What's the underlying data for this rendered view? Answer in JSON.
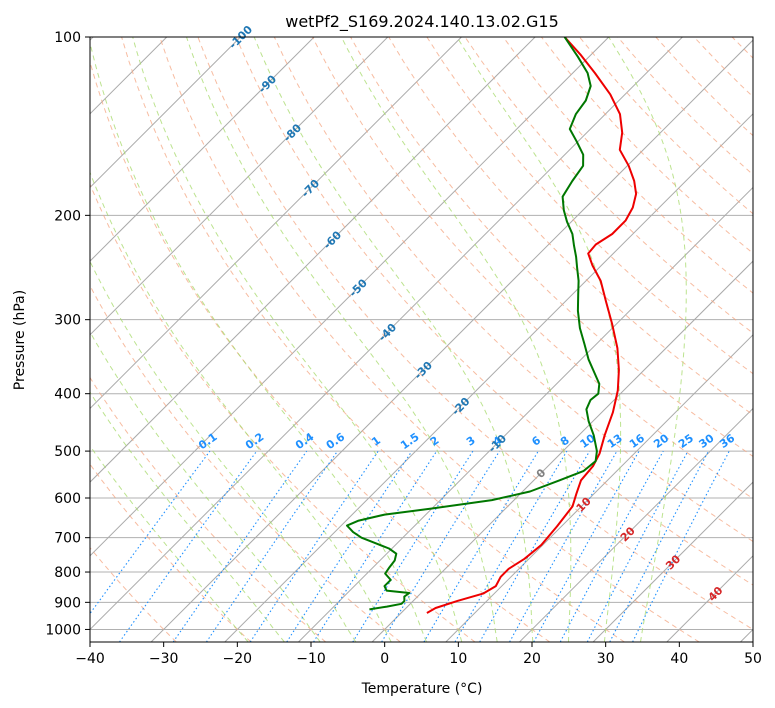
{
  "chart_data": {
    "type": "line",
    "subtype": "skew-t log-p",
    "title": "wetPf2_S169.2024.140.13.02.G15",
    "xlabel": "Temperature (°C)",
    "ylabel": "Pressure (hPa)",
    "xlim": [
      -40,
      50
    ],
    "ylim": [
      1050,
      100
    ],
    "y_scale": "log",
    "x_ticks": [
      "−40",
      "−30",
      "−20",
      "−10",
      "0",
      "10",
      "20",
      "30",
      "40",
      "50"
    ],
    "y_ticks": [
      "100",
      "200",
      "300",
      "400",
      "500",
      "600",
      "700",
      "800",
      "900",
      "1000"
    ],
    "grid": true,
    "series": [
      {
        "role": "temperature",
        "color": "#ee0000",
        "points": [
          {
            "p": 938,
            "t": 3.5
          },
          {
            "p": 920,
            "t": 4.0
          },
          {
            "p": 895,
            "t": 6.0
          },
          {
            "p": 870,
            "t": 8.5
          },
          {
            "p": 845,
            "t": 9.2
          },
          {
            "p": 815,
            "t": 8.6
          },
          {
            "p": 790,
            "t": 8.6
          },
          {
            "p": 760,
            "t": 9.4
          },
          {
            "p": 720,
            "t": 9.8
          },
          {
            "p": 670,
            "t": 9.4
          },
          {
            "p": 620,
            "t": 8.8
          },
          {
            "p": 590,
            "t": 7.6
          },
          {
            "p": 560,
            "t": 6.4
          },
          {
            "p": 530,
            "t": 6.1
          },
          {
            "p": 505,
            "t": 5.3
          },
          {
            "p": 470,
            "t": 3.5
          },
          {
            "p": 430,
            "t": 1.5
          },
          {
            "p": 395,
            "t": -0.8
          },
          {
            "p": 365,
            "t": -3.4
          },
          {
            "p": 335,
            "t": -6.6
          },
          {
            "p": 305,
            "t": -10.6
          },
          {
            "p": 280,
            "t": -14.4
          },
          {
            "p": 258,
            "t": -18.0
          },
          {
            "p": 243,
            "t": -21.2
          },
          {
            "p": 232,
            "t": -23.4
          },
          {
            "p": 224,
            "t": -23.6
          },
          {
            "p": 215,
            "t": -22.8
          },
          {
            "p": 204,
            "t": -22.8
          },
          {
            "p": 194,
            "t": -23.6
          },
          {
            "p": 184,
            "t": -25.0
          },
          {
            "p": 175,
            "t": -27.0
          },
          {
            "p": 165,
            "t": -29.8
          },
          {
            "p": 155,
            "t": -33.2
          },
          {
            "p": 145,
            "t": -35.2
          },
          {
            "p": 135,
            "t": -38.0
          },
          {
            "p": 125,
            "t": -42.0
          },
          {
            "p": 115,
            "t": -47.0
          },
          {
            "p": 107,
            "t": -51.5
          },
          {
            "p": 100,
            "t": -56.0
          }
        ]
      },
      {
        "role": "dewpoint",
        "color": "#007700",
        "points": [
          {
            "p": 925,
            "t": -4.8
          },
          {
            "p": 915,
            "t": -2.8
          },
          {
            "p": 905,
            "t": -1.2
          },
          {
            "p": 895,
            "t": -1.2
          },
          {
            "p": 880,
            "t": -1.8
          },
          {
            "p": 868,
            "t": -1.6
          },
          {
            "p": 860,
            "t": -5.0
          },
          {
            "p": 845,
            "t": -5.9
          },
          {
            "p": 825,
            "t": -5.9
          },
          {
            "p": 805,
            "t": -7.5
          },
          {
            "p": 785,
            "t": -7.8
          },
          {
            "p": 765,
            "t": -8.0
          },
          {
            "p": 745,
            "t": -8.7
          },
          {
            "p": 730,
            "t": -10.4
          },
          {
            "p": 715,
            "t": -13.0
          },
          {
            "p": 700,
            "t": -15.6
          },
          {
            "p": 685,
            "t": -17.5
          },
          {
            "p": 668,
            "t": -19.2
          },
          {
            "p": 655,
            "t": -18.3
          },
          {
            "p": 640,
            "t": -15.6
          },
          {
            "p": 625,
            "t": -10.0
          },
          {
            "p": 605,
            "t": -3.0
          },
          {
            "p": 585,
            "t": 1.0
          },
          {
            "p": 560,
            "t": 3.5
          },
          {
            "p": 540,
            "t": 5.5
          },
          {
            "p": 520,
            "t": 5.8
          },
          {
            "p": 500,
            "t": 4.6
          },
          {
            "p": 470,
            "t": 2.0
          },
          {
            "p": 445,
            "t": -0.6
          },
          {
            "p": 425,
            "t": -2.5
          },
          {
            "p": 410,
            "t": -3.2
          },
          {
            "p": 400,
            "t": -3.0
          },
          {
            "p": 385,
            "t": -4.2
          },
          {
            "p": 370,
            "t": -6.2
          },
          {
            "p": 350,
            "t": -9.0
          },
          {
            "p": 330,
            "t": -11.6
          },
          {
            "p": 310,
            "t": -14.4
          },
          {
            "p": 290,
            "t": -17.0
          },
          {
            "p": 272,
            "t": -19.2
          },
          {
            "p": 258,
            "t": -21.0
          },
          {
            "p": 245,
            "t": -23.0
          },
          {
            "p": 235,
            "t": -24.6
          },
          {
            "p": 225,
            "t": -26.4
          },
          {
            "p": 215,
            "t": -28.2
          },
          {
            "p": 205,
            "t": -30.6
          },
          {
            "p": 196,
            "t": -32.6
          },
          {
            "p": 186,
            "t": -34.6
          },
          {
            "p": 175,
            "t": -35.4
          },
          {
            "p": 165,
            "t": -36.0
          },
          {
            "p": 158,
            "t": -37.5
          },
          {
            "p": 150,
            "t": -40.2
          },
          {
            "p": 143,
            "t": -42.8
          },
          {
            "p": 135,
            "t": -44.0
          },
          {
            "p": 128,
            "t": -44.5
          },
          {
            "p": 121,
            "t": -45.8
          },
          {
            "p": 115,
            "t": -48.0
          },
          {
            "p": 108,
            "t": -51.5
          },
          {
            "p": 100,
            "t": -56.0
          }
        ]
      }
    ],
    "reference_lines": {
      "isotherms": {
        "step": 10,
        "color": "#aaaaaa"
      },
      "dry_adiabats": {
        "theta_c": [
          -30,
          -20,
          -10,
          0,
          10,
          20,
          30,
          40,
          50,
          60,
          70,
          80,
          90,
          100,
          110,
          120,
          130,
          140,
          150,
          160,
          170,
          180,
          190,
          200
        ],
        "color": "#f4a582"
      },
      "moist_adiabats": {
        "theta_w_c": [
          -20,
          -15,
          -10,
          -5,
          0,
          5,
          10,
          15,
          20,
          25,
          30,
          35
        ],
        "color": "#a6d96a"
      },
      "mixing_ratio_lines": {
        "values": [
          0.1,
          0.2,
          0.4,
          0.6,
          1,
          1.5,
          2,
          3,
          4,
          6,
          8,
          10,
          13,
          16,
          20,
          25,
          30,
          36
        ],
        "color": "#1e90ff"
      }
    },
    "isotherm_labels": [
      {
        "text": "-100",
        "color": "#1f77b4"
      },
      {
        "text": "-90",
        "color": "#1f77b4"
      },
      {
        "text": "-80",
        "color": "#1f77b4"
      },
      {
        "text": "-70",
        "color": "#1f77b4"
      },
      {
        "text": "-60",
        "color": "#1f77b4"
      },
      {
        "text": "-50",
        "color": "#1f77b4"
      },
      {
        "text": "-40",
        "color": "#1f77b4"
      },
      {
        "text": "-30",
        "color": "#1f77b4"
      },
      {
        "text": "-20",
        "color": "#1f77b4"
      },
      {
        "text": "-10",
        "color": "#1f77b4"
      },
      {
        "text": "0",
        "color": "#808080"
      },
      {
        "text": "10",
        "color": "#d62728"
      },
      {
        "text": "20",
        "color": "#d62728"
      },
      {
        "text": "30",
        "color": "#d62728"
      },
      {
        "text": "40",
        "color": "#d62728"
      }
    ],
    "mixing_ratio_labels": [
      "0.1",
      "0.2",
      "0.4",
      "0.6",
      "1",
      "1.5",
      "2",
      "3",
      "4",
      "6",
      "8",
      "10",
      "13",
      "16",
      "20",
      "25",
      "30",
      "36"
    ]
  }
}
